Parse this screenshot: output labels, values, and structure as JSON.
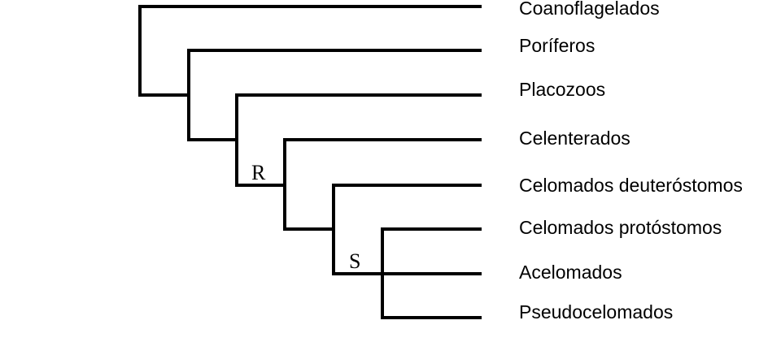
{
  "leaves": [
    "Coanoflagelados",
    "Poríferos",
    "Placozoos",
    "Celenterados",
    "Celomados deuteróstomos",
    "Celomados protóstomos",
    "Acelomados",
    "Pseudocelomados"
  ],
  "node_labels": [
    "R",
    "S"
  ]
}
